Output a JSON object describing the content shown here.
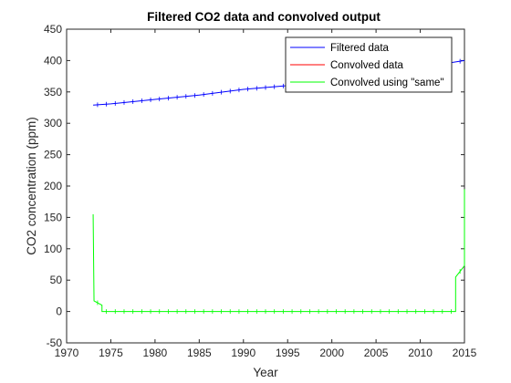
{
  "chart_data": {
    "type": "line",
    "title": "Filtered CO2 data and convolved output",
    "xlabel": "Year",
    "ylabel": "CO2 concentration (ppm)",
    "xlim": [
      1970,
      2015
    ],
    "ylim": [
      -50,
      450
    ],
    "xticks": [
      "1970",
      "1975",
      "1980",
      "1985",
      "1990",
      "1995",
      "2000",
      "2005",
      "2010",
      "2015"
    ],
    "yticks": [
      "-50",
      "0",
      "50",
      "100",
      "150",
      "200",
      "250",
      "300",
      "350",
      "400",
      "450"
    ],
    "legend_position": "top-right",
    "grid": false,
    "series": [
      {
        "name": "Filtered data",
        "color": "#0000ff",
        "x": [
          1973,
          1975,
          1980,
          1985,
          1990,
          1995,
          2000,
          2005,
          2010,
          2015
        ],
        "y": [
          329,
          331,
          338,
          345,
          354,
          360,
          369,
          379,
          389,
          400
        ]
      },
      {
        "name": "Convolved data",
        "color": "#ff0000",
        "x": [],
        "y": []
      },
      {
        "name": "Convolved using \"same\"",
        "color": "#00ff00",
        "x": [
          1973,
          1973.1,
          1974,
          1974,
          2014,
          2014,
          2015,
          2015
        ],
        "y": [
          155,
          17,
          10,
          0,
          0,
          55,
          73,
          195
        ]
      }
    ]
  }
}
